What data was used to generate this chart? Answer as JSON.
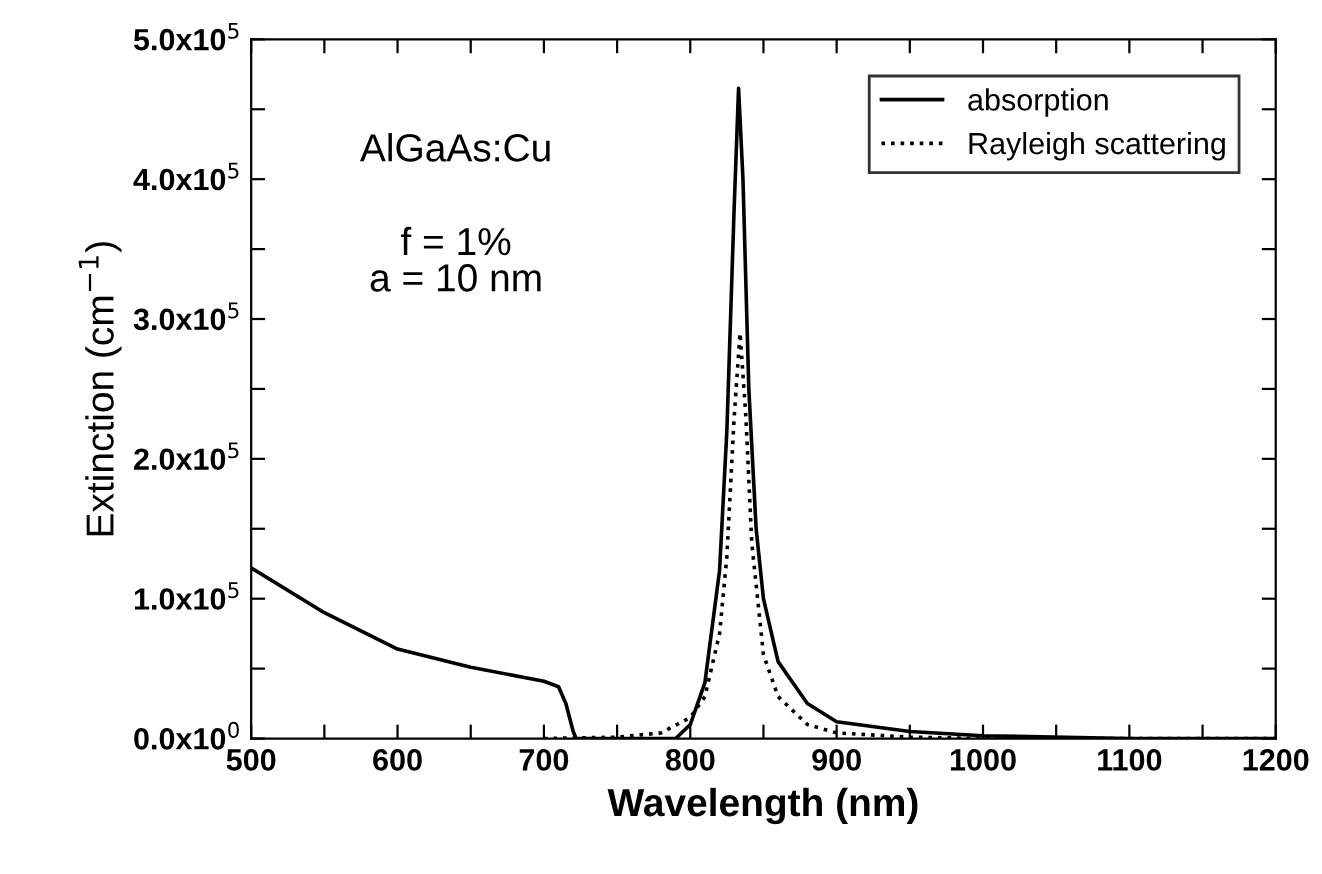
{
  "chart_data": {
    "type": "line",
    "xlabel": "Wavelength (nm)",
    "ylabel": "Extinction (cm$^{−1}$)",
    "annotations": [
      "AlGaAs:Cu",
      "f = 1%\na = 10 nm"
    ],
    "xlim": [
      500,
      1200
    ],
    "ylim": [
      0,
      500000
    ],
    "xticks": [
      500,
      {
        "value": 550,
        "label": null
      },
      600,
      {
        "value": 650,
        "label": null
      },
      700,
      {
        "value": 750,
        "label": null
      },
      800,
      {
        "value": 850,
        "label": null
      },
      900,
      {
        "value": 950,
        "label": null
      },
      1000,
      {
        "value": 1050,
        "label": null
      },
      1100,
      {
        "value": 1150,
        "label": null
      },
      1200
    ],
    "yticks": [
      {
        "value": 0,
        "label": "0.0x10$^{0}$"
      },
      {
        "value": 50000,
        "label": null
      },
      {
        "value": 100000,
        "label": "1.0x10$^{5}$"
      },
      {
        "value": 150000,
        "label": null
      },
      {
        "value": 200000,
        "label": "2.0x10$^{5}$"
      },
      {
        "value": 250000,
        "label": null
      },
      {
        "value": 300000,
        "label": "3.0x10$^{5}$"
      },
      {
        "value": 350000,
        "label": null
      },
      {
        "value": 400000,
        "label": "4.0x10$^{5}$"
      },
      {
        "value": 450000,
        "label": null
      },
      {
        "value": 500000,
        "label": "5.0x10$^{5}$"
      }
    ],
    "grid": false,
    "legend": "top right",
    "series": [
      {
        "name": "absorption",
        "color": "#000000",
        "line_style": "solid",
        "x": [
          500,
          550,
          600,
          650,
          700,
          710,
          715,
          720,
          722,
          790,
          800,
          810,
          820,
          825,
          830,
          833,
          836,
          840,
          845,
          850,
          860,
          880,
          900,
          950,
          1000,
          1100,
          1200
        ],
        "values": [
          122000,
          90000,
          64000,
          51000,
          41000,
          37000,
          25000,
          5000,
          0,
          0,
          10000,
          40000,
          120000,
          220000,
          380000,
          465000,
          400000,
          250000,
          150000,
          100000,
          55000,
          25000,
          12000,
          5000,
          2000,
          0,
          0
        ]
      },
      {
        "name": "Rayleigh scattering",
        "color": "#000000",
        "line_style": "dotted",
        "x": [
          700,
          750,
          780,
          800,
          810,
          820,
          825,
          830,
          834,
          838,
          842,
          850,
          860,
          880,
          900,
          950,
          1000,
          1200
        ],
        "values": [
          0,
          1000,
          4000,
          15000,
          30000,
          75000,
          130000,
          230000,
          290000,
          230000,
          140000,
          60000,
          30000,
          10000,
          4000,
          1000,
          0,
          0
        ]
      }
    ]
  }
}
